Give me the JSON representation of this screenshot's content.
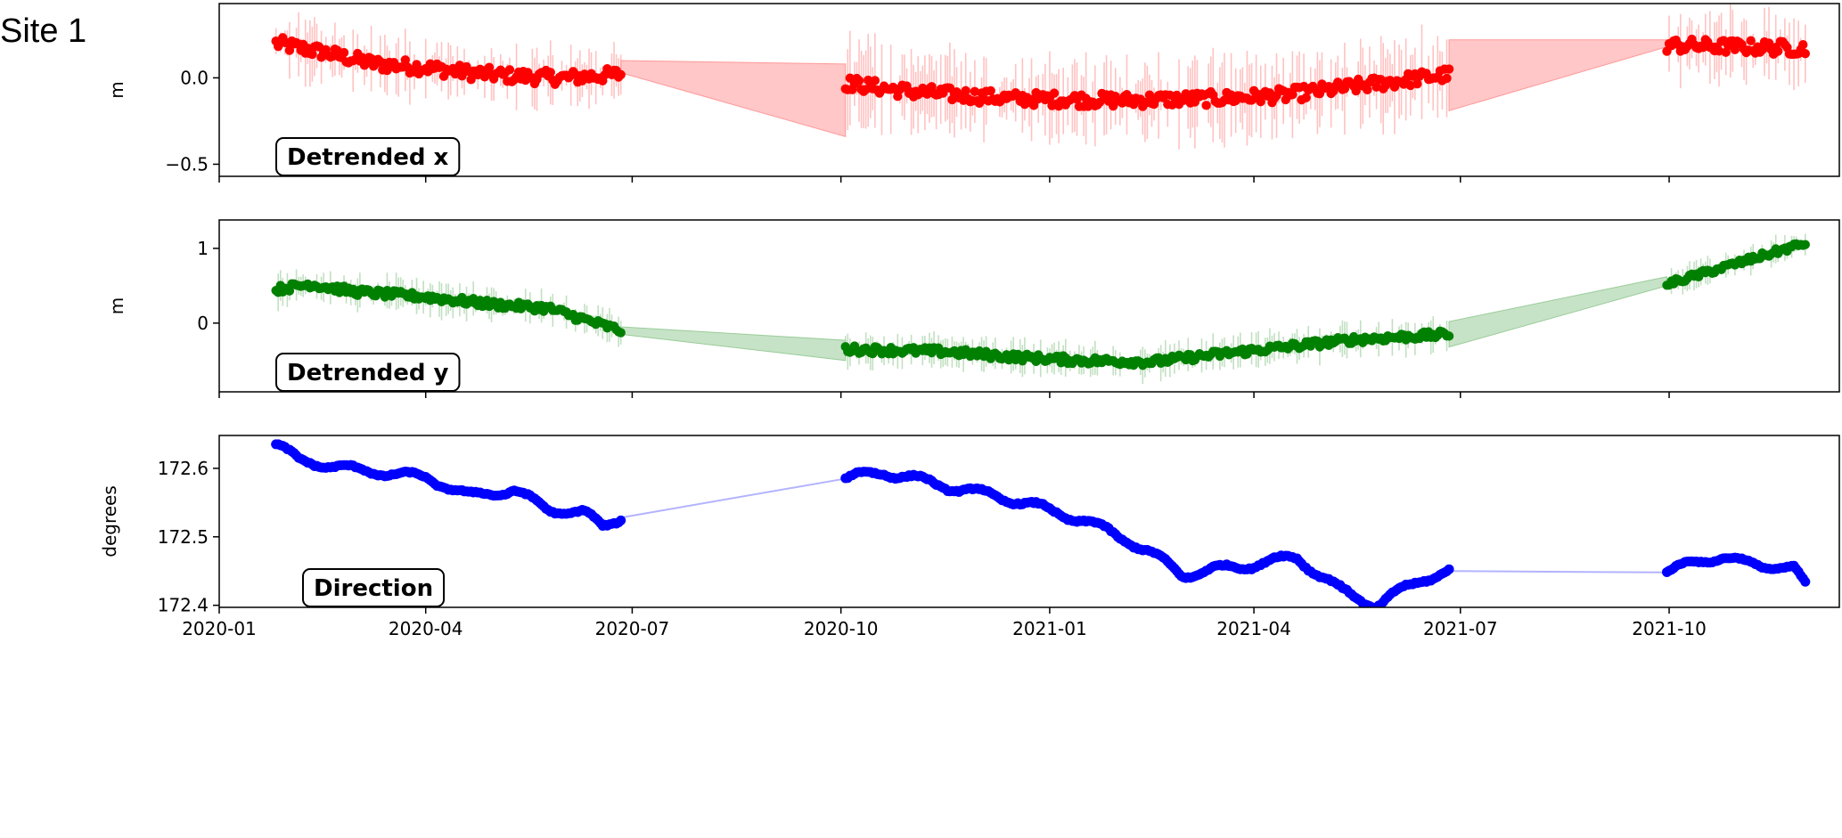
{
  "site_label": "Site 1",
  "chart_data": [
    {
      "type": "scatter",
      "panel_label": "Detrended x",
      "ylabel": "m",
      "ylim": [
        -0.57,
        0.43
      ],
      "yticks": [
        0.0,
        -0.5
      ],
      "ytick_labels": [
        "0.0",
        "−0.5"
      ],
      "color": "#ff0000",
      "band_color": "#ff9999",
      "segments": [
        {
          "start": "2020-01-26",
          "end": "2020-06-26",
          "knots": [
            [
              "2020-01-26",
              0.2
            ],
            [
              "2020-02-15",
              0.15
            ],
            [
              "2020-03-10",
              0.08
            ],
            [
              "2020-04-01",
              0.06
            ],
            [
              "2020-04-20",
              0.03
            ],
            [
              "2020-05-10",
              0.01
            ],
            [
              "2020-06-01",
              0.0
            ],
            [
              "2020-06-26",
              0.02
            ]
          ],
          "spread": 0.04,
          "err": 0.14
        },
        {
          "start": "2020-10-03",
          "end": "2021-06-26",
          "knots": [
            [
              "2020-10-03",
              -0.03
            ],
            [
              "2020-11-01",
              -0.08
            ],
            [
              "2020-12-15",
              -0.12
            ],
            [
              "2021-02-01",
              -0.13
            ],
            [
              "2021-03-15",
              -0.12
            ],
            [
              "2021-04-15",
              -0.1
            ],
            [
              "2021-05-15",
              -0.05
            ],
            [
              "2021-06-26",
              0.02
            ]
          ],
          "spread": 0.04,
          "err": 0.2
        },
        {
          "start": "2021-09-30",
          "end": "2021-11-30",
          "knots": [
            [
              "2021-09-30",
              0.19
            ],
            [
              "2021-10-31",
              0.18
            ],
            [
              "2021-11-30",
              0.17
            ]
          ],
          "spread": 0.04,
          "err": 0.16
        }
      ],
      "gap_bands": [
        {
          "x0": "2020-06-26",
          "x1": "2020-10-03",
          "y0_low": 0.03,
          "y0_high": 0.1,
          "y1_low": -0.34,
          "y1_high": 0.08
        },
        {
          "x0": "2021-06-26",
          "x1": "2021-09-30",
          "y0_low": -0.19,
          "y0_high": 0.22,
          "y1_low": 0.18,
          "y1_high": 0.22
        }
      ]
    },
    {
      "type": "scatter",
      "panel_label": "Detrended y",
      "ylabel": "m",
      "ylim": [
        -0.92,
        1.38
      ],
      "yticks": [
        1,
        0
      ],
      "ytick_labels": [
        "1",
        "0"
      ],
      "color": "#008000",
      "band_color": "#99cc99",
      "segments": [
        {
          "start": "2020-01-26",
          "end": "2020-06-26",
          "knots": [
            [
              "2020-01-26",
              0.45
            ],
            [
              "2020-02-10",
              0.52
            ],
            [
              "2020-03-01",
              0.42
            ],
            [
              "2020-04-01",
              0.35
            ],
            [
              "2020-05-01",
              0.25
            ],
            [
              "2020-05-25",
              0.2
            ],
            [
              "2020-06-15",
              0.0
            ],
            [
              "2020-06-26",
              -0.1
            ]
          ],
          "spread": 0.05,
          "err": 0.18
        },
        {
          "start": "2020-10-03",
          "end": "2021-06-26",
          "knots": [
            [
              "2020-10-03",
              -0.35
            ],
            [
              "2020-11-15",
              -0.38
            ],
            [
              "2020-12-15",
              -0.45
            ],
            [
              "2021-01-15",
              -0.5
            ],
            [
              "2021-02-15",
              -0.52
            ],
            [
              "2021-03-15",
              -0.42
            ],
            [
              "2021-04-15",
              -0.32
            ],
            [
              "2021-05-15",
              -0.22
            ],
            [
              "2021-06-26",
              -0.15
            ]
          ],
          "spread": 0.05,
          "err": 0.18
        },
        {
          "start": "2021-09-30",
          "end": "2021-11-30",
          "knots": [
            [
              "2021-09-30",
              0.52
            ],
            [
              "2021-10-31",
              0.8
            ],
            [
              "2021-11-30",
              1.07
            ]
          ],
          "spread": 0.04,
          "err": 0.14
        }
      ],
      "gap_bands": [
        {
          "x0": "2020-06-26",
          "x1": "2020-10-03",
          "y0_low": -0.15,
          "y0_high": -0.05,
          "y1_low": -0.5,
          "y1_high": -0.23
        },
        {
          "x0": "2021-06-26",
          "x1": "2021-09-30",
          "y0_low": -0.32,
          "y0_high": 0.02,
          "y1_low": 0.5,
          "y1_high": 0.62
        }
      ]
    },
    {
      "type": "line",
      "panel_label": "Direction",
      "ylabel": "degrees",
      "ylim": [
        172.397,
        172.648
      ],
      "yticks": [
        172.6,
        172.5,
        172.4
      ],
      "ytick_labels": [
        "172.6",
        "172.5",
        "172.4"
      ],
      "color": "#0000ff",
      "gap_line_color": "#b3b3ff",
      "segments": [
        {
          "start": "2020-01-26",
          "end": "2020-06-26",
          "knots": [
            [
              "2020-01-26",
              172.636
            ],
            [
              "2020-02-05",
              172.612
            ],
            [
              "2020-03-01",
              172.598
            ],
            [
              "2020-04-01",
              172.587
            ],
            [
              "2020-04-20",
              172.56
            ],
            [
              "2020-05-10",
              172.568
            ],
            [
              "2020-05-25",
              172.54
            ],
            [
              "2020-06-10",
              172.535
            ],
            [
              "2020-06-18",
              172.515
            ],
            [
              "2020-06-26",
              172.528
            ]
          ],
          "wiggle": 0.005
        },
        {
          "start": "2020-10-03",
          "end": "2021-06-26",
          "knots": [
            [
              "2020-10-03",
              172.585
            ],
            [
              "2020-10-20",
              172.595
            ],
            [
              "2020-11-15",
              172.575
            ],
            [
              "2020-12-15",
              172.555
            ],
            [
              "2021-01-15",
              172.525
            ],
            [
              "2021-02-05",
              172.495
            ],
            [
              "2021-03-01",
              172.445
            ],
            [
              "2021-04-01",
              172.46
            ],
            [
              "2021-04-20",
              172.47
            ],
            [
              "2021-05-10",
              172.42
            ],
            [
              "2021-05-25",
              172.4
            ],
            [
              "2021-06-15",
              172.44
            ],
            [
              "2021-06-26",
              172.45
            ]
          ],
          "wiggle": 0.006
        },
        {
          "start": "2021-09-30",
          "end": "2021-11-30",
          "knots": [
            [
              "2021-09-30",
              172.448
            ],
            [
              "2021-10-10",
              172.462
            ],
            [
              "2021-10-25",
              172.47
            ],
            [
              "2021-11-10",
              172.458
            ],
            [
              "2021-11-25",
              172.455
            ],
            [
              "2021-11-30",
              172.43
            ]
          ],
          "wiggle": 0.004
        }
      ],
      "gap_lines": [
        {
          "x0": "2020-06-26",
          "y0": 172.528,
          "x1": "2020-10-03",
          "y1": 172.585
        },
        {
          "x0": "2021-06-26",
          "y0": 172.45,
          "x1": "2021-09-30",
          "y1": 172.448
        }
      ]
    }
  ],
  "x_axis": {
    "ticks": [
      "2020-01-01",
      "2020-04-01",
      "2020-07-01",
      "2020-10-01",
      "2021-01-01",
      "2021-04-01",
      "2021-07-01",
      "2021-10-01"
    ],
    "tick_labels": [
      "2020-01",
      "2020-04",
      "2020-07",
      "2020-10",
      "2021-01",
      "2021-04",
      "2021-07",
      "2021-10"
    ],
    "xlim": [
      "2020-01-01",
      "2021-12-15"
    ]
  }
}
